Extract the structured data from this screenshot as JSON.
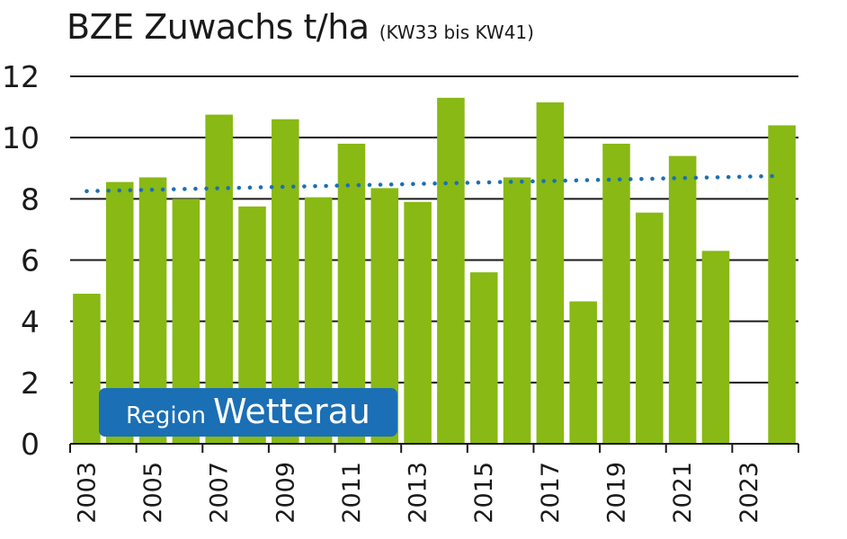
{
  "chart_data": {
    "type": "bar",
    "title": "BZE Zuwachs t/ha",
    "subtitle": "(KW33 bis KW41)",
    "categories": [
      "2003",
      "2004",
      "2005",
      "2006",
      "2007",
      "2008",
      "2009",
      "2010",
      "2011",
      "2012",
      "2013",
      "2014",
      "2015",
      "2016",
      "2017",
      "2018",
      "2019",
      "2020",
      "2021",
      "2022",
      "2023",
      "2024"
    ],
    "x_tick_labels": [
      "2003",
      "2005",
      "2007",
      "2009",
      "2011",
      "2013",
      "2015",
      "2017",
      "2019",
      "2021",
      "2023"
    ],
    "values": [
      4.9,
      8.55,
      8.7,
      8.0,
      10.75,
      7.75,
      10.6,
      8.05,
      9.8,
      8.35,
      7.9,
      11.3,
      5.6,
      8.7,
      11.15,
      4.65,
      9.8,
      7.55,
      9.4,
      6.3,
      null,
      10.4
    ],
    "trend": {
      "type": "linear",
      "style": "dotted",
      "start_value": 8.25,
      "end_value": 8.75
    },
    "ylim": [
      0,
      12
    ],
    "y_ticks": [
      0,
      2,
      4,
      6,
      8,
      10,
      12
    ],
    "xlabel": "",
    "ylabel": "",
    "grid": "horizontal",
    "colors": {
      "bar": "#88b914",
      "trend": "#1b6fb5",
      "grid": "#1a1a1a"
    }
  },
  "annotation": {
    "region_prefix": "Region",
    "region_name": "Wetterau",
    "color": "#1b6fb5"
  }
}
